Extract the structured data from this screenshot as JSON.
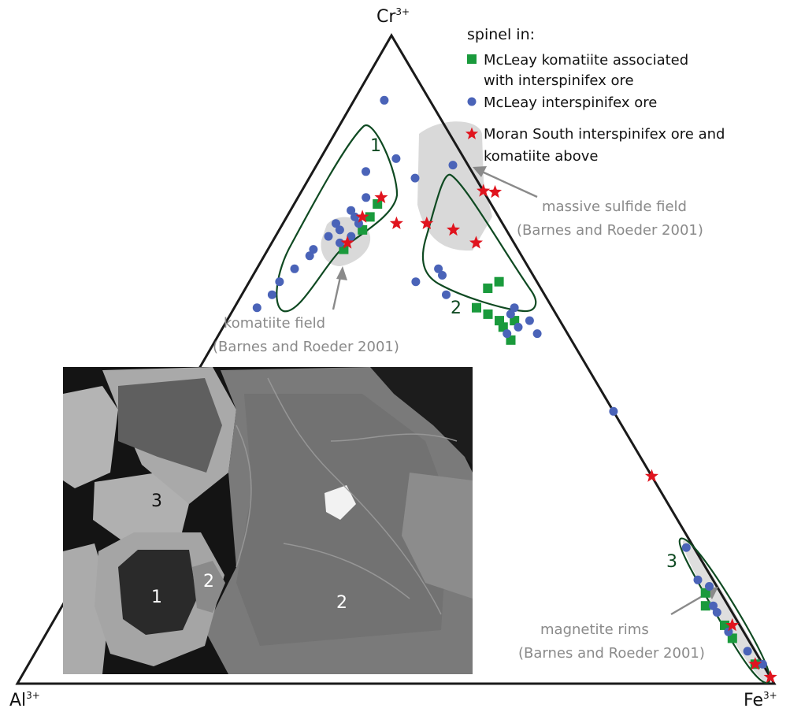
{
  "chart_data": {
    "type": "ternary-scatter",
    "vertices": {
      "top": {
        "base": "Cr",
        "sup": "3+"
      },
      "left": {
        "base": "Al",
        "sup": "3+"
      },
      "right": {
        "base": "Fe",
        "sup": "3+"
      }
    },
    "legend": {
      "title": "spinel in:",
      "placement": "top-right",
      "entries": [
        {
          "lines": [
            "McLeay komatiite associated",
            "with interspinifex ore"
          ],
          "marker": "square",
          "color": "#1a9a3c"
        },
        {
          "lines": [
            "McLeay interspinifex ore"
          ],
          "marker": "circle",
          "color": "#4a63b8"
        },
        {
          "lines": [
            "Moran South interspinifex ore and",
            "komatiite above"
          ],
          "marker": "star",
          "color": "#e0141e"
        }
      ]
    },
    "fields": [
      {
        "lines": [
          "massive sulfide field",
          "(Barnes and Roeder 2001)"
        ],
        "color": "#d9d9d9"
      },
      {
        "lines": [
          "komatiite field",
          "(Barnes and Roeder 2001)"
        ],
        "color": "#d9d9d9"
      },
      {
        "lines": [
          "magnetite rims",
          "(Barnes and Roeder 2001)"
        ],
        "color": "#d9d9d9"
      }
    ],
    "groups": [
      {
        "label": "1",
        "color": "#0f4a22"
      },
      {
        "label": "2",
        "color": "#0f4a22"
      },
      {
        "label": "3",
        "color": "#0f4a22"
      }
    ],
    "series": [
      {
        "name": "McLeay komatiite associated with interspinifex ore",
        "marker": "square",
        "color": "#1a9a3c",
        "points": [
          {
            "cr": 0.74,
            "fe": 0.11
          },
          {
            "cr": 0.72,
            "fe": 0.11
          },
          {
            "cr": 0.7,
            "fe": 0.11
          },
          {
            "cr": 0.67,
            "fe": 0.1
          },
          {
            "cr": 0.62,
            "fe": 0.33
          },
          {
            "cr": 0.61,
            "fe": 0.32
          },
          {
            "cr": 0.58,
            "fe": 0.32
          },
          {
            "cr": 0.57,
            "fe": 0.34
          },
          {
            "cr": 0.56,
            "fe": 0.36
          },
          {
            "cr": 0.56,
            "fe": 0.38
          },
          {
            "cr": 0.55,
            "fe": 0.37
          },
          {
            "cr": 0.53,
            "fe": 0.39
          },
          {
            "cr": 0.14,
            "fe": 0.84
          },
          {
            "cr": 0.12,
            "fe": 0.85
          },
          {
            "cr": 0.09,
            "fe": 0.89
          },
          {
            "cr": 0.07,
            "fe": 0.91
          },
          {
            "cr": 0.03,
            "fe": 0.96
          }
        ]
      },
      {
        "name": "McLeay interspinifex ore",
        "marker": "circle",
        "color": "#4a63b8",
        "points": [
          {
            "cr": 0.9,
            "fe": 0.04
          },
          {
            "cr": 0.81,
            "fe": 0.1
          },
          {
            "cr": 0.78,
            "fe": 0.14
          },
          {
            "cr": 0.79,
            "fe": 0.07
          },
          {
            "cr": 0.75,
            "fe": 0.09
          },
          {
            "cr": 0.73,
            "fe": 0.08
          },
          {
            "cr": 0.72,
            "fe": 0.09
          },
          {
            "cr": 0.71,
            "fe": 0.07
          },
          {
            "cr": 0.71,
            "fe": 0.1
          },
          {
            "cr": 0.7,
            "fe": 0.08
          },
          {
            "cr": 0.69,
            "fe": 0.07
          },
          {
            "cr": 0.69,
            "fe": 0.1
          },
          {
            "cr": 0.68,
            "fe": 0.09
          },
          {
            "cr": 0.67,
            "fe": 0.06
          },
          {
            "cr": 0.66,
            "fe": 0.06
          },
          {
            "cr": 0.64,
            "fe": 0.05
          },
          {
            "cr": 0.62,
            "fe": 0.04
          },
          {
            "cr": 0.6,
            "fe": 0.04
          },
          {
            "cr": 0.58,
            "fe": 0.03
          },
          {
            "cr": 0.8,
            "fe": 0.18
          },
          {
            "cr": 0.64,
            "fe": 0.24
          },
          {
            "cr": 0.63,
            "fe": 0.25
          },
          {
            "cr": 0.62,
            "fe": 0.22
          },
          {
            "cr": 0.6,
            "fe": 0.27
          },
          {
            "cr": 0.58,
            "fe": 0.37
          },
          {
            "cr": 0.57,
            "fe": 0.37
          },
          {
            "cr": 0.56,
            "fe": 0.4
          },
          {
            "cr": 0.55,
            "fe": 0.39
          },
          {
            "cr": 0.54,
            "fe": 0.38
          },
          {
            "cr": 0.54,
            "fe": 0.42
          },
          {
            "cr": 0.42,
            "fe": 0.58
          },
          {
            "cr": 0.21,
            "fe": 0.78
          },
          {
            "cr": 0.16,
            "fe": 0.82
          },
          {
            "cr": 0.15,
            "fe": 0.84
          },
          {
            "cr": 0.12,
            "fe": 0.86
          },
          {
            "cr": 0.11,
            "fe": 0.87
          },
          {
            "cr": 0.08,
            "fe": 0.9
          },
          {
            "cr": 0.05,
            "fe": 0.94
          },
          {
            "cr": 0.03,
            "fe": 0.97
          }
        ]
      },
      {
        "name": "Moran South interspinifex ore and komatiite above",
        "marker": "star",
        "color": "#e0141e",
        "points": [
          {
            "cr": 0.79,
            "fe": 0.24
          },
          {
            "cr": 0.76,
            "fe": 0.24
          },
          {
            "cr": 0.75,
            "fe": 0.11
          },
          {
            "cr": 0.72,
            "fe": 0.1
          },
          {
            "cr": 0.71,
            "fe": 0.19
          },
          {
            "cr": 0.7,
            "fe": 0.23
          },
          {
            "cr": 0.68,
            "fe": 0.1
          },
          {
            "cr": 0.68,
            "fe": 0.27
          },
          {
            "cr": 0.71,
            "fe": 0.15
          },
          {
            "cr": 0.32,
            "fe": 0.68
          },
          {
            "cr": 0.09,
            "fe": 0.9
          },
          {
            "cr": 0.03,
            "fe": 0.96
          },
          {
            "cr": 0.01,
            "fe": 0.99
          }
        ]
      }
    ],
    "inset": {
      "type": "backscatter-electron-image",
      "labels": [
        "1",
        "2",
        "2",
        "3"
      ]
    }
  }
}
